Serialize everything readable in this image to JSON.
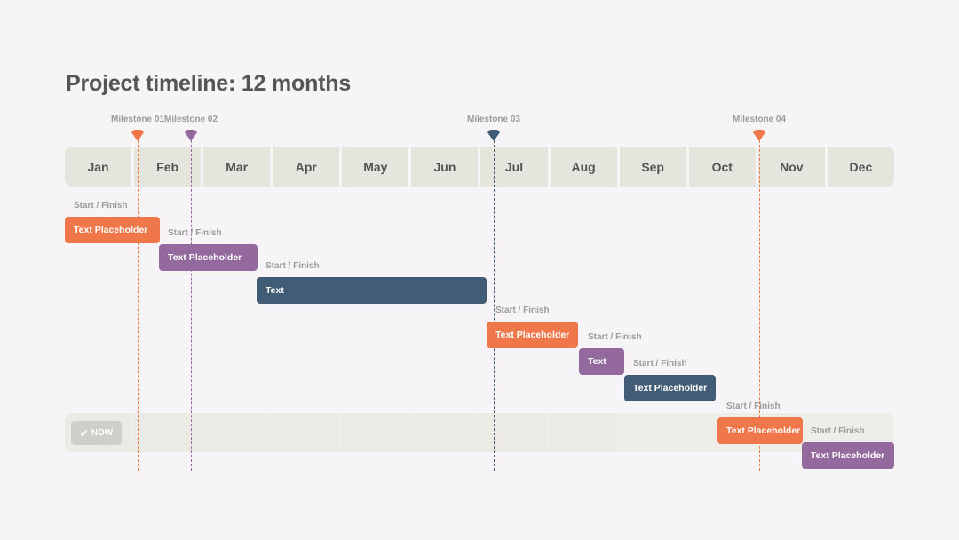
{
  "title": "Project timeline: 12 months",
  "months": [
    "Jan",
    "Feb",
    "Mar",
    "Apr",
    "May",
    "Jun",
    "Jul",
    "Aug",
    "Sep",
    "Oct",
    "Nov",
    "Dec"
  ],
  "colors": {
    "orange": "#f0774a",
    "purple": "#93699e",
    "navy": "#415c75",
    "band": "#e6e5dd",
    "label": "#9b9b9b"
  },
  "milestones": [
    {
      "label": "Milestone 01",
      "month": 1.05,
      "color": "orange",
      "icon": "diamond-marker-icon"
    },
    {
      "label": "Milestone 02",
      "month": 1.83,
      "color": "purple",
      "icon": "diamond-marker-icon"
    },
    {
      "label": "Milestone 03",
      "month": 6.2,
      "color": "navy",
      "icon": "diamond-marker-icon"
    },
    {
      "label": "Milestone 04",
      "month": 10.05,
      "color": "orange",
      "icon": "diamond-marker-icon"
    }
  ],
  "tasks": [
    {
      "text": "Text Placeholder",
      "label": "Start / Finish",
      "start": 0.0,
      "end": 1.38,
      "color": "orange"
    },
    {
      "text": "Text Placeholder",
      "label": "Start / Finish",
      "start": 1.36,
      "end": 2.78,
      "color": "purple"
    },
    {
      "text": "Text",
      "label": "Start / Finish",
      "start": 2.77,
      "end": 6.1,
      "color": "navy"
    },
    {
      "text": "Text Placeholder",
      "label": "Start / Finish",
      "start": 6.1,
      "end": 7.42,
      "color": "orange"
    },
    {
      "text": "Text",
      "label": "Start / Finish",
      "start": 7.44,
      "end": 8.1,
      "color": "purple"
    },
    {
      "text": "Text Placeholder",
      "label": "Start / Finish",
      "start": 8.1,
      "end": 9.42,
      "color": "navy"
    },
    {
      "text": "Text Placeholder",
      "label": "Start / Finish",
      "start": 9.44,
      "end": 10.67,
      "color": "orange"
    },
    {
      "text": "Text Placeholder",
      "label": "Start / Finish",
      "start": 10.67,
      "end": 12.0,
      "color": "purple"
    }
  ],
  "now": {
    "label": "NOW",
    "icon": "check-icon",
    "check": "✔"
  }
}
